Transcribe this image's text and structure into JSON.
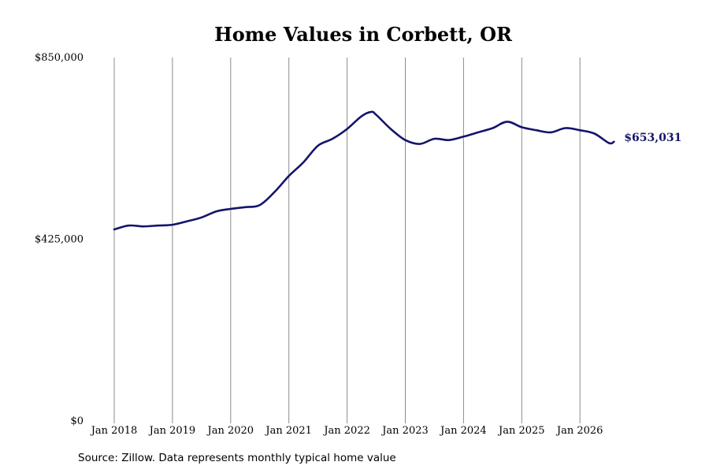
{
  "chart_data": {
    "type": "line",
    "title": "Home Values in Corbett, OR",
    "xlabel": "",
    "ylabel": "",
    "ylim": [
      0,
      850000
    ],
    "yticks": [
      {
        "value": 0,
        "label": "$0"
      },
      {
        "value": 425000,
        "label": "$425,000"
      },
      {
        "value": 850000,
        "label": "$850,000"
      }
    ],
    "xticks": [
      {
        "value": "2018-01",
        "label": "Jan 2018"
      },
      {
        "value": "2019-01",
        "label": "Jan 2019"
      },
      {
        "value": "2020-01",
        "label": "Jan 2020"
      },
      {
        "value": "2021-01",
        "label": "Jan 2021"
      },
      {
        "value": "2022-01",
        "label": "Jan 2022"
      },
      {
        "value": "2023-01",
        "label": "Jan 2023"
      },
      {
        "value": "2024-01",
        "label": "Jan 2024"
      },
      {
        "value": "2025-01",
        "label": "Jan 2025"
      },
      {
        "value": "2026-01",
        "label": "Jan 2026"
      }
    ],
    "grid": "vertical",
    "line_color": "#14146b",
    "end_label": "$653,031",
    "series": [
      {
        "name": "",
        "x": [
          "2018-01",
          "2018-04",
          "2018-07",
          "2018-10",
          "2019-01",
          "2019-04",
          "2019-07",
          "2019-10",
          "2020-01",
          "2020-04",
          "2020-07",
          "2020-10",
          "2021-01",
          "2021-04",
          "2021-07",
          "2021-10",
          "2022-01",
          "2022-04",
          "2022-06",
          "2022-07",
          "2022-10",
          "2023-01",
          "2023-04",
          "2023-07",
          "2023-10",
          "2024-01",
          "2024-04",
          "2024-07",
          "2024-10",
          "2025-01",
          "2025-04",
          "2025-07",
          "2025-10",
          "2026-01",
          "2026-04",
          "2026-07",
          "2026-08"
        ],
        "values": [
          448000,
          457000,
          455000,
          457000,
          459000,
          467000,
          476000,
          490000,
          496000,
          500000,
          505000,
          535000,
          573000,
          605000,
          644000,
          660000,
          683000,
          713000,
          723000,
          716000,
          683000,
          657000,
          648000,
          660000,
          657000,
          665000,
          675000,
          685000,
          700000,
          687000,
          680000,
          675000,
          685000,
          680000,
          672000,
          650000,
          653031
        ]
      }
    ]
  },
  "source": "Source: Zillow. Data represents monthly typical home value"
}
